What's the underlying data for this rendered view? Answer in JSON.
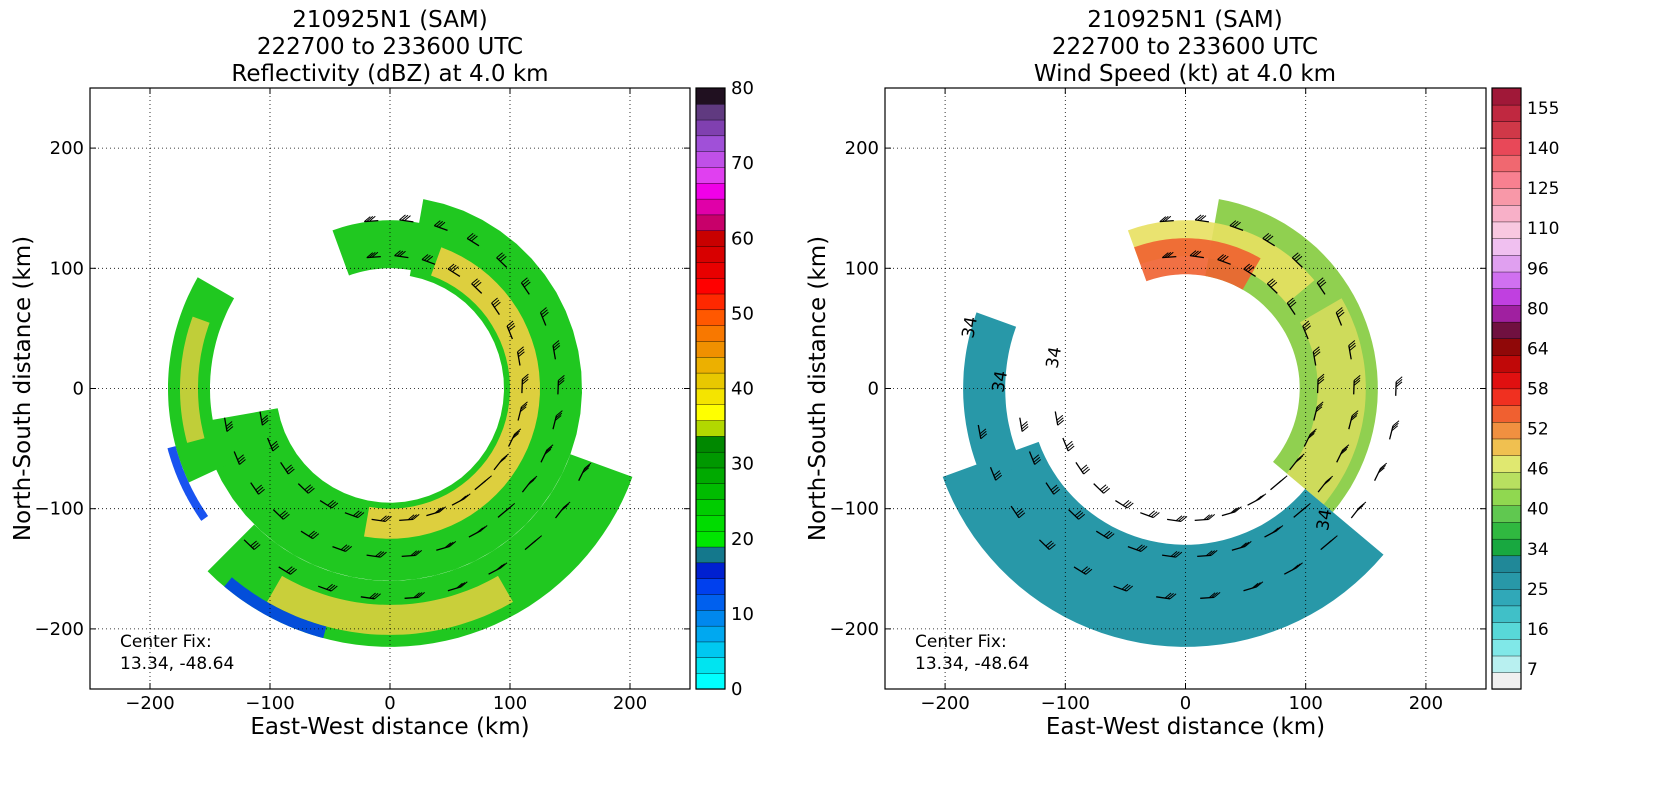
{
  "chart_data": [
    {
      "type": "heatmap",
      "title_lines": [
        "210925N1 (SAM)",
        "222700 to 233600 UTC",
        "Reflectivity (dBZ) at 4.0 km"
      ],
      "xlabel": "East-West distance (km)",
      "ylabel": "North-South distance (km)",
      "xlim": [
        -250,
        250
      ],
      "ylim": [
        -250,
        250
      ],
      "xticks": [
        -200,
        -100,
        0,
        100,
        200
      ],
      "yticks": [
        -200,
        -100,
        0,
        100,
        200
      ],
      "grid": true,
      "annotation": [
        "Center Fix:",
        "13.34, -48.64"
      ],
      "colorbar": {
        "range": [
          0,
          80
        ],
        "ticks": [
          0,
          10,
          20,
          30,
          40,
          50,
          60,
          70,
          80
        ],
        "colors": [
          "#00ffff",
          "#00e4f0",
          "#00c8f0",
          "#00a8f0",
          "#0088ee",
          "#0060ee",
          "#0040ee",
          "#0020d0",
          "#14788c",
          "#00e600",
          "#00dc00",
          "#00cc00",
          "#00bc00",
          "#00aa00",
          "#009800",
          "#008800",
          "#b2d800",
          "#ffff00",
          "#f4e400",
          "#e8c800",
          "#ecb000",
          "#f09000",
          "#f87800",
          "#ff5800",
          "#ff2800",
          "#ff0000",
          "#e80000",
          "#d80000",
          "#c80000",
          "#c8006a",
          "#e000a8",
          "#f000e8",
          "#e040f0",
          "#c050e8",
          "#a050d8",
          "#8040b0",
          "#603a80",
          "#201020"
        ]
      },
      "storm": {
        "center": [
          0,
          0
        ],
        "core_color": "#e8d040",
        "rain_color": "#20c820",
        "edge_color": "#0040ee"
      }
    },
    {
      "type": "heatmap",
      "title_lines": [
        "210925N1 (SAM)",
        "222700 to 233600 UTC",
        "Wind Speed (kt) at 4.0 km"
      ],
      "xlabel": "East-West distance (km)",
      "ylabel": "North-South distance (km)",
      "xlim": [
        -250,
        250
      ],
      "ylim": [
        -250,
        250
      ],
      "xticks": [
        -200,
        -100,
        0,
        100,
        200
      ],
      "yticks": [
        -200,
        -100,
        0,
        100,
        200
      ],
      "grid": true,
      "annotation": [
        "Center Fix:",
        "13.34, -48.64"
      ],
      "contour_labels": [
        "34",
        "34",
        "34",
        "34"
      ],
      "colorbar": {
        "ticks": [
          7,
          16,
          25,
          34,
          40,
          46,
          52,
          58,
          64,
          80,
          96,
          110,
          125,
          140,
          155
        ],
        "colors": [
          "#f0f0f0",
          "#b8f0f0",
          "#80e8e8",
          "#58d8d8",
          "#40c0c8",
          "#30a8b8",
          "#2898a8",
          "#208898",
          "#18a840",
          "#30b840",
          "#60c850",
          "#90d850",
          "#b8e060",
          "#e0e870",
          "#f0c050",
          "#f09040",
          "#f06030",
          "#f03020",
          "#e01010",
          "#c00808",
          "#900808",
          "#701040",
          "#a020a0",
          "#c040e0",
          "#d070f0",
          "#e0a0f0",
          "#f0c0f0",
          "#f8c8e0",
          "#f8b0c8",
          "#f898a8",
          "#f88090",
          "#f06870",
          "#e84858",
          "#d03848",
          "#c02840",
          "#a01838"
        ]
      },
      "storm": {
        "center": [
          0,
          0
        ],
        "core_color": "#e8e060",
        "rain_color": "#90d050",
        "outer_color": "#2898a8",
        "max_color": "#f06030"
      }
    }
  ]
}
